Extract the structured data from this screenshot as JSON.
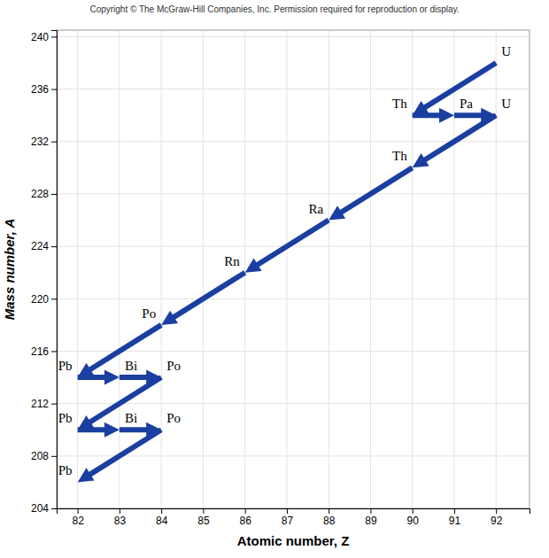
{
  "chart_data": {
    "type": "arrows",
    "annotations": [
      "Copyright © The McGraw-Hill Companies, Inc. Permission required for reproduction or display."
    ],
    "xlabel": "Atomic number, Z",
    "ylabel": "Mass number, A",
    "xlim": [
      81.5,
      92.8
    ],
    "ylim": [
      204,
      240.5
    ],
    "xticks": [
      82,
      83,
      84,
      85,
      86,
      87,
      88,
      89,
      90,
      91,
      92
    ],
    "yticks": [
      204,
      208,
      212,
      216,
      220,
      224,
      228,
      232,
      236,
      240
    ],
    "grid": true,
    "color": "#1a3fa0",
    "x": [
      92,
      90,
      91,
      92,
      90,
      88,
      86,
      84,
      82,
      83,
      84,
      82,
      83,
      84,
      82
    ],
    "y": [
      238,
      234,
      234,
      234,
      230,
      226,
      222,
      218,
      214,
      214,
      214,
      210,
      210,
      210,
      206
    ],
    "labels": [
      "U",
      "Th",
      "Pa",
      "U",
      "Th",
      "Ra",
      "Rn",
      "Po",
      "Pb",
      "Bi",
      "Po",
      "Pb",
      "Bi",
      "Po",
      "Pb"
    ],
    "arrows": [
      {
        "x1": 92,
        "y1": 238,
        "x2": 90,
        "y2": 234
      },
      {
        "x1": 90,
        "y1": 234,
        "x2": 91,
        "y2": 234
      },
      {
        "x1": 91,
        "y1": 234,
        "x2": 92,
        "y2": 234
      },
      {
        "x1": 92,
        "y1": 234,
        "x2": 90,
        "y2": 230
      },
      {
        "x1": 90,
        "y1": 230,
        "x2": 88,
        "y2": 226
      },
      {
        "x1": 88,
        "y1": 226,
        "x2": 86,
        "y2": 222
      },
      {
        "x1": 86,
        "y1": 222,
        "x2": 84,
        "y2": 218
      },
      {
        "x1": 84,
        "y1": 218,
        "x2": 82,
        "y2": 214
      },
      {
        "x1": 82,
        "y1": 214,
        "x2": 83,
        "y2": 214
      },
      {
        "x1": 83,
        "y1": 214,
        "x2": 84,
        "y2": 214
      },
      {
        "x1": 84,
        "y1": 214,
        "x2": 82,
        "y2": 210
      },
      {
        "x1": 82,
        "y1": 210,
        "x2": 83,
        "y2": 210
      },
      {
        "x1": 83,
        "y1": 210,
        "x2": 84,
        "y2": 210
      },
      {
        "x1": 84,
        "y1": 210,
        "x2": 82,
        "y2": 206
      }
    ]
  }
}
